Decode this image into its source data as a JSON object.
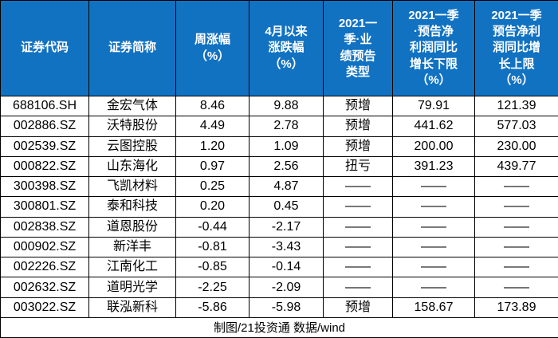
{
  "chart_data": {
    "type": "table",
    "title": "",
    "columns": [
      "证券代码",
      "证券简称",
      "周涨幅\n（%）",
      "4月以来\n涨跌幅\n（%）",
      "2021一\n季·业\n绩预告\n类型",
      "2021一季\n·预告净\n利润同比\n增长下限\n（%）",
      "2021一季\n预告净利\n润同比增\n长上限\n（%）"
    ],
    "columns_plain": [
      "证券代码",
      "证券简称",
      "周涨幅（%）",
      "4月以来涨跌幅（%）",
      "2021一季·业绩预告类型",
      "2021一季·预告净利润同比增长下限（%）",
      "2021一季预告净利润同比增长上限（%）"
    ],
    "rows": [
      [
        "688106.SH",
        "金宏气体",
        "8.46",
        "9.88",
        "预增",
        "79.91",
        "121.39"
      ],
      [
        "002886.SZ",
        "沃特股份",
        "4.49",
        "2.78",
        "预增",
        "441.62",
        "577.03"
      ],
      [
        "002539.SZ",
        "云图控股",
        "1.20",
        "1.09",
        "预增",
        "200.00",
        "230.00"
      ],
      [
        "000822.SZ",
        "山东海化",
        "0.97",
        "2.56",
        "扭亏",
        "391.23",
        "439.77"
      ],
      [
        "300398.SZ",
        "飞凯材料",
        "0.25",
        "4.87",
        "——",
        "——",
        "——"
      ],
      [
        "300801.SZ",
        "泰和科技",
        "0.20",
        "0.45",
        "——",
        "——",
        "——"
      ],
      [
        "002838.SZ",
        "道恩股份",
        "-0.44",
        "-2.17",
        "——",
        "——",
        "——"
      ],
      [
        "000902.SZ",
        "新洋丰",
        "-0.81",
        "-3.43",
        "——",
        "——",
        "——"
      ],
      [
        "002226.SZ",
        "江南化工",
        "-0.85",
        "-0.14",
        "——",
        "——",
        "——"
      ],
      [
        "002632.SZ",
        "道明光学",
        "-2.25",
        "-2.09",
        "——",
        "——",
        "——"
      ],
      [
        "003022.SZ",
        "联泓新科",
        "-5.86",
        "-5.98",
        "预增",
        "158.67",
        "173.89"
      ]
    ],
    "footer": "制图/21投资通 数据/wind"
  },
  "colors": {
    "header_bg": "#1272c2",
    "header_text": "#ffffff",
    "border": "#000000",
    "body_bg": "#ffffff",
    "body_text": "#000000"
  }
}
